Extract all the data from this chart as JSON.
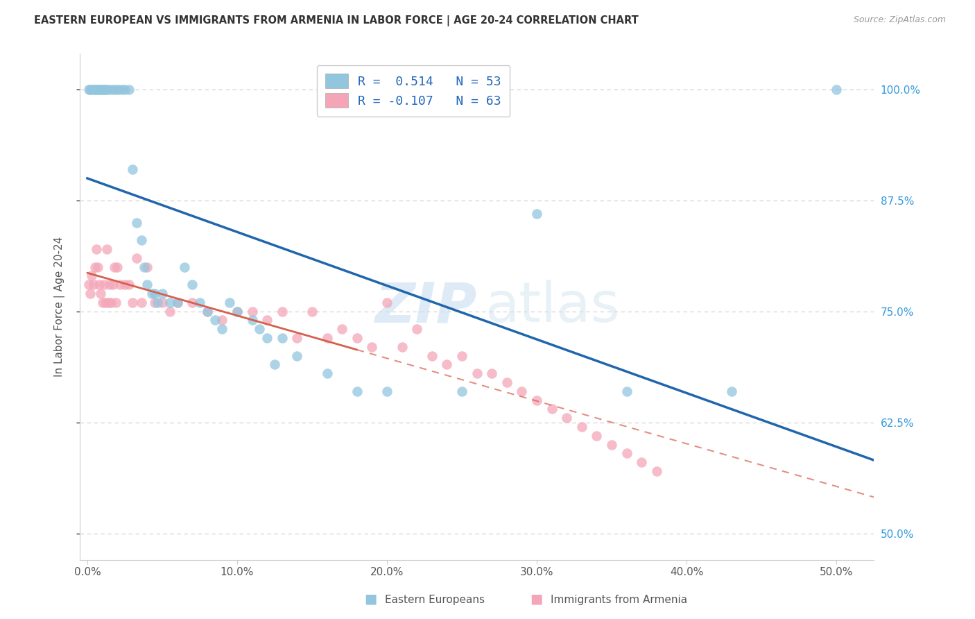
{
  "title": "EASTERN EUROPEAN VS IMMIGRANTS FROM ARMENIA IN LABOR FORCE | AGE 20-24 CORRELATION CHART",
  "source": "Source: ZipAtlas.com",
  "ylabel": "In Labor Force | Age 20-24",
  "x_tick_labels": [
    "0.0%",
    "10.0%",
    "20.0%",
    "30.0%",
    "40.0%",
    "50.0%"
  ],
  "x_tick_values": [
    0.0,
    0.1,
    0.2,
    0.3,
    0.4,
    0.5
  ],
  "y_tick_labels": [
    "50.0%",
    "62.5%",
    "75.0%",
    "87.5%",
    "100.0%"
  ],
  "y_tick_values": [
    0.5,
    0.625,
    0.75,
    0.875,
    1.0
  ],
  "ylim": [
    0.47,
    1.04
  ],
  "xlim": [
    -0.005,
    0.525
  ],
  "blue_R": 0.514,
  "blue_N": 53,
  "pink_R": -0.107,
  "pink_N": 63,
  "legend_label_blue": "Eastern Europeans",
  "legend_label_pink": "Immigrants from Armenia",
  "blue_color": "#92c5de",
  "pink_color": "#f4a6b8",
  "blue_line_color": "#2166ac",
  "pink_line_color": "#d6604d",
  "background_color": "#ffffff",
  "grid_color": "#cccccc",
  "blue_x": [
    0.001,
    0.002,
    0.003,
    0.004,
    0.005,
    0.006,
    0.007,
    0.008,
    0.009,
    0.01,
    0.011,
    0.012,
    0.013,
    0.015,
    0.017,
    0.019,
    0.021,
    0.023,
    0.025,
    0.028,
    0.03,
    0.033,
    0.036,
    0.038,
    0.04,
    0.043,
    0.045,
    0.047,
    0.05,
    0.055,
    0.06,
    0.065,
    0.07,
    0.075,
    0.08,
    0.085,
    0.09,
    0.095,
    0.1,
    0.11,
    0.115,
    0.12,
    0.125,
    0.13,
    0.14,
    0.16,
    0.18,
    0.2,
    0.25,
    0.3,
    0.36,
    0.43,
    0.5
  ],
  "blue_y": [
    1.0,
    1.0,
    1.0,
    1.0,
    1.0,
    1.0,
    1.0,
    1.0,
    1.0,
    1.0,
    1.0,
    1.0,
    1.0,
    1.0,
    1.0,
    1.0,
    1.0,
    1.0,
    1.0,
    1.0,
    0.91,
    0.85,
    0.83,
    0.8,
    0.78,
    0.77,
    0.77,
    0.76,
    0.77,
    0.76,
    0.76,
    0.8,
    0.78,
    0.76,
    0.75,
    0.74,
    0.73,
    0.76,
    0.75,
    0.74,
    0.73,
    0.72,
    0.69,
    0.72,
    0.7,
    0.68,
    0.66,
    0.66,
    0.66,
    0.86,
    0.66,
    0.66,
    1.0
  ],
  "pink_x": [
    0.001,
    0.002,
    0.003,
    0.004,
    0.005,
    0.006,
    0.007,
    0.008,
    0.009,
    0.01,
    0.011,
    0.012,
    0.013,
    0.014,
    0.015,
    0.016,
    0.017,
    0.018,
    0.019,
    0.02,
    0.022,
    0.025,
    0.028,
    0.03,
    0.033,
    0.036,
    0.04,
    0.045,
    0.05,
    0.055,
    0.06,
    0.07,
    0.08,
    0.09,
    0.1,
    0.11,
    0.12,
    0.13,
    0.14,
    0.15,
    0.16,
    0.17,
    0.18,
    0.19,
    0.2,
    0.21,
    0.22,
    0.23,
    0.24,
    0.25,
    0.26,
    0.27,
    0.28,
    0.29,
    0.3,
    0.31,
    0.32,
    0.33,
    0.34,
    0.35,
    0.36,
    0.37,
    0.38
  ],
  "pink_y": [
    0.78,
    0.77,
    0.79,
    0.78,
    0.8,
    0.82,
    0.8,
    0.78,
    0.77,
    0.76,
    0.78,
    0.76,
    0.82,
    0.76,
    0.78,
    0.76,
    0.78,
    0.8,
    0.76,
    0.8,
    0.78,
    0.78,
    0.78,
    0.76,
    0.81,
    0.76,
    0.8,
    0.76,
    0.76,
    0.75,
    0.76,
    0.76,
    0.75,
    0.74,
    0.75,
    0.75,
    0.74,
    0.75,
    0.72,
    0.75,
    0.72,
    0.73,
    0.72,
    0.71,
    0.76,
    0.71,
    0.73,
    0.7,
    0.69,
    0.7,
    0.68,
    0.68,
    0.67,
    0.66,
    0.65,
    0.64,
    0.63,
    0.62,
    0.61,
    0.6,
    0.59,
    0.58,
    0.57
  ],
  "blue_line_x0": 0.0,
  "blue_line_x1": 0.525,
  "pink_line_solid_x0": 0.0,
  "pink_line_solid_x1": 0.18,
  "pink_line_dash_x0": 0.18,
  "pink_line_dash_x1": 0.525
}
